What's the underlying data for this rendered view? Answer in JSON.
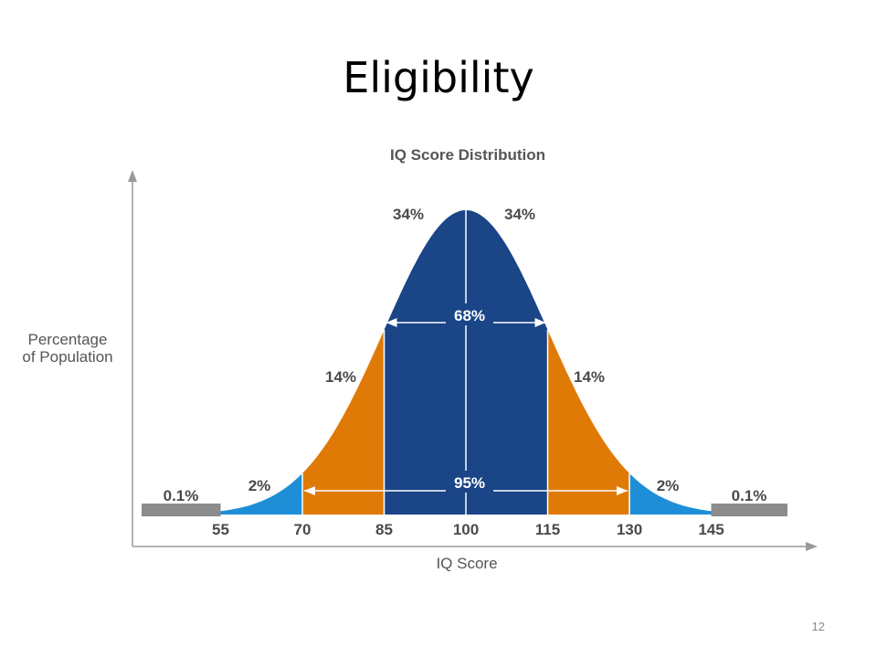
{
  "slide": {
    "title": "Eligibility",
    "page_number": "12"
  },
  "chart_data": {
    "type": "area",
    "title": "IQ Score Distribution",
    "xlabel": "IQ Score",
    "ylabel_line1": "Percentage",
    "ylabel_line2": "of Population",
    "mean": 100,
    "sd": 15,
    "xlim": [
      40,
      160
    ],
    "tick_labels": [
      "55",
      "70",
      "85",
      "100",
      "115",
      "130",
      "145"
    ],
    "bands": [
      {
        "from": 40,
        "to": 55,
        "label": "0.1%",
        "color": "#8c8c8c"
      },
      {
        "from": 55,
        "to": 70,
        "label": "2%",
        "color": "#1e8fd6"
      },
      {
        "from": 70,
        "to": 85,
        "label": "14%",
        "color": "#e07a07"
      },
      {
        "from": 85,
        "to": 100,
        "label": "34%",
        "color": "#1a4587"
      },
      {
        "from": 100,
        "to": 115,
        "label": "34%",
        "color": "#1a4587"
      },
      {
        "from": 115,
        "to": 130,
        "label": "14%",
        "color": "#e07a07"
      },
      {
        "from": 130,
        "to": 145,
        "label": "2%",
        "color": "#1e8fd6"
      },
      {
        "from": 145,
        "to": 160,
        "label": "0.1%",
        "color": "#8c8c8c"
      }
    ],
    "ranges": [
      {
        "from": 85,
        "to": 115,
        "label": "68%"
      },
      {
        "from": 70,
        "to": 130,
        "label": "95%"
      }
    ]
  }
}
